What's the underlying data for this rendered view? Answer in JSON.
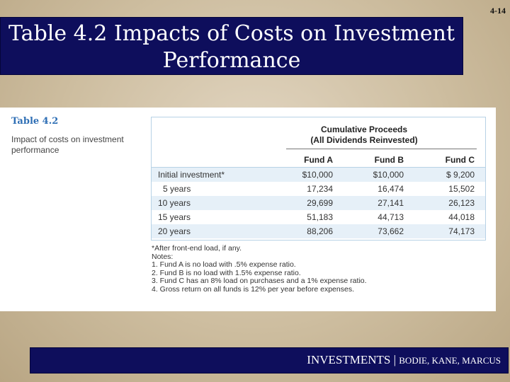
{
  "slide_number": "4-14",
  "title_line1": "Table 4.2 Impacts of Costs on Investment",
  "title_line2": "Performance",
  "table": {
    "label": "Table 4.2",
    "caption": "Impact of costs on investment performance",
    "header_line1": "Cumulative Proceeds",
    "header_line2": "(All Dividends Reinvested)",
    "columns": [
      "Fund A",
      "Fund B",
      "Fund C"
    ],
    "rows": [
      {
        "label": "Initial investment*",
        "values": [
          "$10,000",
          "$10,000",
          "$ 9,200"
        ]
      },
      {
        "label": "5 years",
        "values": [
          "17,234",
          "16,474",
          "15,502"
        ]
      },
      {
        "label": "10 years",
        "values": [
          "29,699",
          "27,141",
          "26,123"
        ]
      },
      {
        "label": "15 years",
        "values": [
          "51,183",
          "44,713",
          "44,018"
        ]
      },
      {
        "label": "20 years",
        "values": [
          "88,206",
          "73,662",
          "74,173"
        ]
      }
    ]
  },
  "notes": [
    "*After front-end load, if any.",
    "Notes:",
    "1. Fund A is no load with .5% expense ratio.",
    "2. Fund B is no load with 1.5% expense ratio.",
    "3. Fund C has an 8% load on purchases and a 1% expense ratio.",
    "4. Gross return on all funds is 12% per year before expenses."
  ],
  "footer": {
    "main": "INVESTMENTS | ",
    "authors": "BODIE, KANE, MARCUS"
  }
}
